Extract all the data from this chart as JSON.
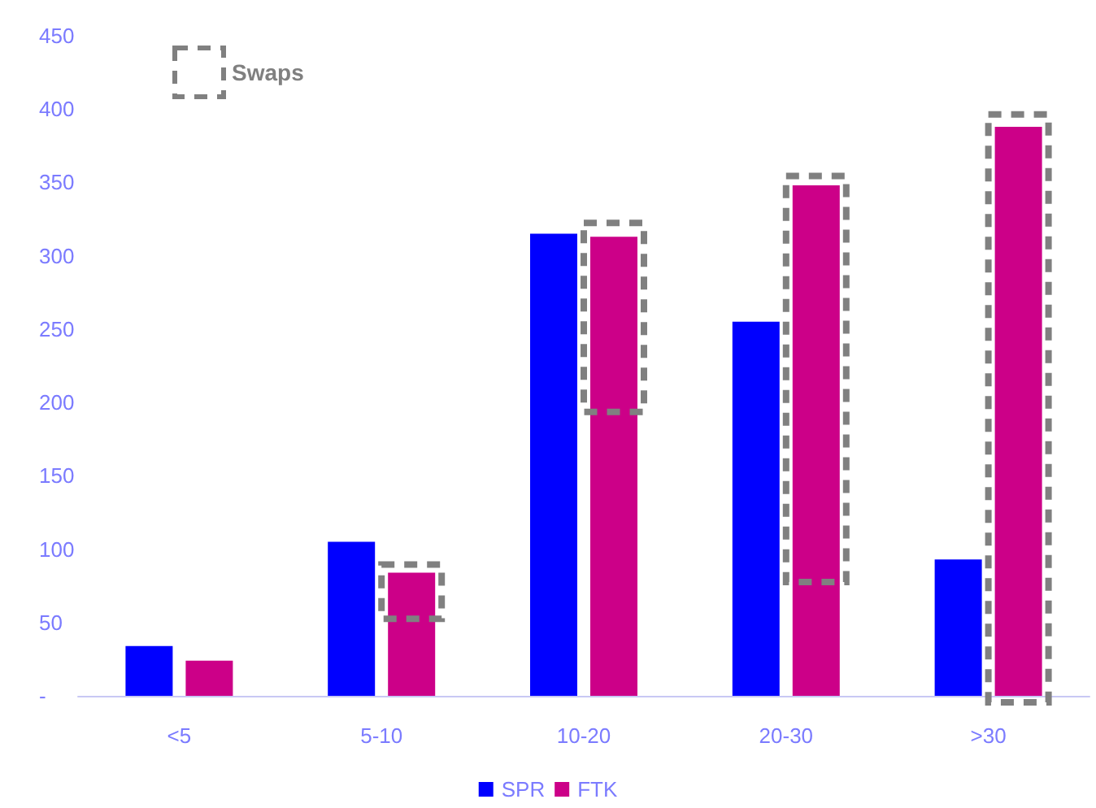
{
  "chart_data": {
    "type": "bar",
    "categories": [
      "<5",
      "5-10",
      "10-20",
      "20-30",
      ">30"
    ],
    "series": [
      {
        "name": "SPR",
        "color": "#0000ff",
        "values": [
          34,
          105,
          315,
          255,
          93
        ]
      },
      {
        "name": "FTK",
        "color": "#cc0088",
        "values": [
          24,
          84,
          313,
          348,
          388
        ]
      },
      {
        "name": "Swaps",
        "color": "#808080",
        "type": "bar",
        "line_style": "dashed",
        "base": [
          null,
          57,
          198,
          82,
          0
        ],
        "values": [
          null,
          28,
          120,
          268,
          392
        ]
      }
    ],
    "ylim": [
      0,
      450
    ],
    "yticks": [
      {
        "value": 0,
        "label": "-"
      },
      50,
      100,
      150,
      200,
      250,
      300,
      350,
      400,
      450
    ],
    "grid": false,
    "legend": "bottom"
  }
}
